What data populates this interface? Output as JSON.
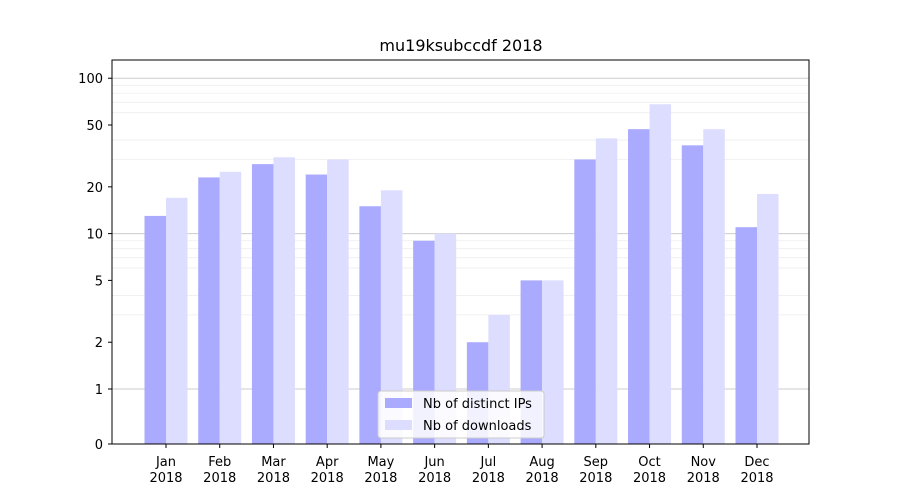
{
  "chart_data": {
    "type": "bar",
    "title": "mu19ksubccdf 2018",
    "xlabel": "",
    "ylabel": "",
    "yscale": "symlog",
    "ylim": [
      0,
      110
    ],
    "yticks": [
      0,
      1,
      2,
      5,
      10,
      20,
      50,
      100
    ],
    "ytick_labels": [
      "0",
      "1",
      "2",
      "5",
      "10",
      "20",
      "50",
      "100"
    ],
    "grid": true,
    "legend_position": "bottom-center",
    "categories": [
      [
        "Jan",
        "2018"
      ],
      [
        "Feb",
        "2018"
      ],
      [
        "Mar",
        "2018"
      ],
      [
        "Apr",
        "2018"
      ],
      [
        "May",
        "2018"
      ],
      [
        "Jun",
        "2018"
      ],
      [
        "Jul",
        "2018"
      ],
      [
        "Aug",
        "2018"
      ],
      [
        "Sep",
        "2018"
      ],
      [
        "Oct",
        "2018"
      ],
      [
        "Nov",
        "2018"
      ],
      [
        "Dec",
        "2018"
      ]
    ],
    "series": [
      {
        "name": "Nb of distinct IPs",
        "color": "#aaaaff",
        "values": [
          13,
          23,
          28,
          24,
          15,
          9,
          2,
          5,
          30,
          47,
          37,
          11
        ]
      },
      {
        "name": "Nb of downloads",
        "color": "#ddddff",
        "values": [
          17,
          25,
          31,
          30,
          19,
          10,
          3,
          5,
          41,
          68,
          47,
          18
        ]
      }
    ]
  }
}
